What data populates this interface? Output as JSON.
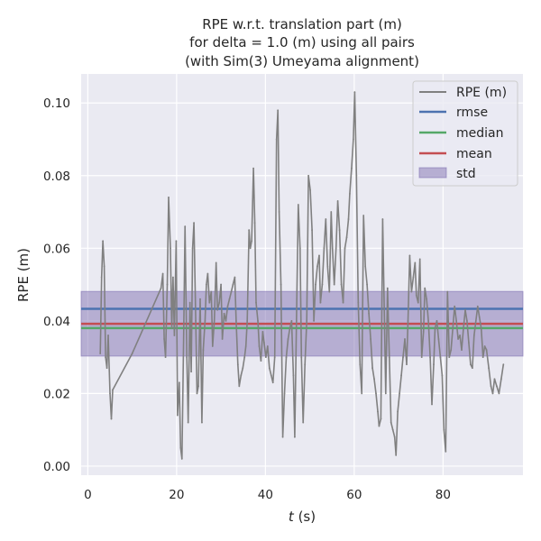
{
  "chart_data": {
    "type": "line",
    "title_lines": [
      "RPE w.r.t. translation part (m)",
      "for delta = 1.0 (m) using all pairs",
      "(with Sim(3) Umeyama alignment)"
    ],
    "xlabel_italic": "t",
    "xlabel_unit": " (s)",
    "ylabel": "RPE (m)",
    "xlim": [
      -1.5,
      98
    ],
    "ylim": [
      -0.0025,
      0.108
    ],
    "xticks": [
      0,
      20,
      40,
      60,
      80
    ],
    "yticks": [
      0.0,
      0.02,
      0.04,
      0.06,
      0.08,
      0.1
    ],
    "xtick_labels": [
      "0",
      "20",
      "40",
      "60",
      "80"
    ],
    "ytick_labels": [
      "0.00",
      "0.02",
      "0.04",
      "0.06",
      "0.08",
      "0.10"
    ],
    "grid": true,
    "legend_position": "top-right",
    "legend": [
      "RPE (m)",
      "rmse",
      "median",
      "mean",
      "std"
    ],
    "colors": {
      "background": "#EAEAF2",
      "grid": "#FFFFFF",
      "series": "#808080",
      "rmse": "#4C72B0",
      "median": "#55A868",
      "mean": "#C44E52",
      "std": "#8172B2"
    },
    "stats": {
      "rmse": 0.0433,
      "median": 0.038,
      "mean": 0.0392,
      "std": 0.0178
    },
    "series": [
      {
        "name": "RPE (m)",
        "points": [
          [
            2.8,
            0.031
          ],
          [
            3.1,
            0.052
          ],
          [
            3.4,
            0.062
          ],
          [
            3.7,
            0.055
          ],
          [
            4.0,
            0.03
          ],
          [
            4.3,
            0.027
          ],
          [
            4.6,
            0.036
          ],
          [
            5.0,
            0.02
          ],
          [
            5.3,
            0.013
          ],
          [
            5.6,
            0.021
          ],
          [
            10.0,
            0.031
          ],
          [
            16.5,
            0.049
          ],
          [
            16.9,
            0.053
          ],
          [
            17.2,
            0.035
          ],
          [
            17.5,
            0.03
          ],
          [
            17.9,
            0.05
          ],
          [
            18.2,
            0.074
          ],
          [
            18.6,
            0.06
          ],
          [
            18.9,
            0.038
          ],
          [
            19.2,
            0.052
          ],
          [
            19.5,
            0.036
          ],
          [
            19.9,
            0.062
          ],
          [
            20.2,
            0.014
          ],
          [
            20.6,
            0.023
          ],
          [
            20.9,
            0.005
          ],
          [
            21.2,
            0.002
          ],
          [
            21.6,
            0.038
          ],
          [
            21.9,
            0.066
          ],
          [
            22.3,
            0.03
          ],
          [
            22.6,
            0.012
          ],
          [
            23.0,
            0.045
          ],
          [
            23.3,
            0.026
          ],
          [
            23.6,
            0.06
          ],
          [
            23.9,
            0.067
          ],
          [
            24.3,
            0.04
          ],
          [
            24.6,
            0.02
          ],
          [
            24.9,
            0.022
          ],
          [
            25.3,
            0.046
          ],
          [
            25.7,
            0.012
          ],
          [
            26.0,
            0.032
          ],
          [
            26.4,
            0.04
          ],
          [
            26.7,
            0.05
          ],
          [
            27.0,
            0.053
          ],
          [
            27.4,
            0.045
          ],
          [
            27.8,
            0.048
          ],
          [
            28.1,
            0.033
          ],
          [
            28.5,
            0.04
          ],
          [
            28.9,
            0.056
          ],
          [
            29.2,
            0.043
          ],
          [
            29.6,
            0.045
          ],
          [
            30.0,
            0.05
          ],
          [
            30.3,
            0.035
          ],
          [
            30.7,
            0.042
          ],
          [
            31.1,
            0.04
          ],
          [
            31.5,
            0.044
          ],
          [
            31.9,
            0.046
          ],
          [
            32.3,
            0.048
          ],
          [
            32.7,
            0.05
          ],
          [
            33.1,
            0.052
          ],
          [
            33.4,
            0.04
          ],
          [
            33.8,
            0.028
          ],
          [
            34.1,
            0.022
          ],
          [
            34.5,
            0.025
          ],
          [
            34.9,
            0.027
          ],
          [
            35.3,
            0.03
          ],
          [
            35.6,
            0.033
          ],
          [
            35.9,
            0.04
          ],
          [
            36.3,
            0.065
          ],
          [
            36.6,
            0.06
          ],
          [
            36.9,
            0.062
          ],
          [
            37.3,
            0.082
          ],
          [
            37.6,
            0.067
          ],
          [
            37.9,
            0.045
          ],
          [
            38.3,
            0.04
          ],
          [
            38.6,
            0.033
          ],
          [
            39.0,
            0.029
          ],
          [
            39.4,
            0.037
          ],
          [
            39.7,
            0.034
          ],
          [
            40.1,
            0.03
          ],
          [
            40.5,
            0.033
          ],
          [
            40.9,
            0.027
          ],
          [
            41.3,
            0.025
          ],
          [
            41.7,
            0.023
          ],
          [
            42.1,
            0.03
          ],
          [
            42.5,
            0.09
          ],
          [
            42.8,
            0.098
          ],
          [
            43.1,
            0.07
          ],
          [
            43.5,
            0.05
          ],
          [
            43.9,
            0.008
          ],
          [
            44.3,
            0.02
          ],
          [
            44.7,
            0.03
          ],
          [
            45.1,
            0.035
          ],
          [
            45.5,
            0.038
          ],
          [
            45.9,
            0.04
          ],
          [
            46.3,
            0.025
          ],
          [
            46.6,
            0.008
          ],
          [
            47.0,
            0.04
          ],
          [
            47.4,
            0.072
          ],
          [
            47.8,
            0.06
          ],
          [
            48.1,
            0.03
          ],
          [
            48.5,
            0.012
          ],
          [
            48.9,
            0.028
          ],
          [
            49.3,
            0.04
          ],
          [
            49.7,
            0.08
          ],
          [
            50.1,
            0.076
          ],
          [
            50.5,
            0.065
          ],
          [
            50.9,
            0.04
          ],
          [
            51.3,
            0.05
          ],
          [
            51.7,
            0.055
          ],
          [
            52.1,
            0.058
          ],
          [
            52.4,
            0.045
          ],
          [
            52.8,
            0.05
          ],
          [
            53.2,
            0.06
          ],
          [
            53.6,
            0.068
          ],
          [
            54.0,
            0.055
          ],
          [
            54.4,
            0.048
          ],
          [
            54.8,
            0.07
          ],
          [
            55.1,
            0.06
          ],
          [
            55.5,
            0.05
          ],
          [
            55.9,
            0.06
          ],
          [
            56.3,
            0.073
          ],
          [
            56.7,
            0.065
          ],
          [
            57.1,
            0.05
          ],
          [
            57.5,
            0.045
          ],
          [
            57.9,
            0.06
          ],
          [
            58.3,
            0.063
          ],
          [
            58.7,
            0.068
          ],
          [
            59.0,
            0.075
          ],
          [
            59.4,
            0.082
          ],
          [
            59.8,
            0.09
          ],
          [
            60.1,
            0.103
          ],
          [
            60.5,
            0.08
          ],
          [
            60.9,
            0.045
          ],
          [
            61.3,
            0.028
          ],
          [
            61.7,
            0.02
          ],
          [
            62.1,
            0.069
          ],
          [
            62.5,
            0.055
          ],
          [
            62.9,
            0.05
          ],
          [
            63.3,
            0.042
          ],
          [
            63.7,
            0.035
          ],
          [
            64.1,
            0.027
          ],
          [
            64.5,
            0.024
          ],
          [
            64.9,
            0.02
          ],
          [
            65.3,
            0.015
          ],
          [
            65.6,
            0.011
          ],
          [
            66.0,
            0.013
          ],
          [
            66.4,
            0.068
          ],
          [
            66.8,
            0.04
          ],
          [
            67.1,
            0.02
          ],
          [
            67.5,
            0.049
          ],
          [
            67.9,
            0.03
          ],
          [
            68.3,
            0.012
          ],
          [
            68.7,
            0.01
          ],
          [
            69.1,
            0.008
          ],
          [
            69.4,
            0.003
          ],
          [
            69.8,
            0.015
          ],
          [
            70.2,
            0.02
          ],
          [
            70.6,
            0.025
          ],
          [
            71.0,
            0.03
          ],
          [
            71.4,
            0.035
          ],
          [
            71.8,
            0.028
          ],
          [
            72.1,
            0.04
          ],
          [
            72.5,
            0.058
          ],
          [
            72.9,
            0.048
          ],
          [
            73.3,
            0.052
          ],
          [
            73.7,
            0.056
          ],
          [
            74.0,
            0.047
          ],
          [
            74.4,
            0.045
          ],
          [
            74.8,
            0.057
          ],
          [
            75.2,
            0.03
          ],
          [
            75.6,
            0.037
          ],
          [
            75.9,
            0.049
          ],
          [
            76.3,
            0.046
          ],
          [
            76.7,
            0.04
          ],
          [
            77.1,
            0.03
          ],
          [
            77.5,
            0.017
          ],
          [
            77.9,
            0.028
          ],
          [
            78.2,
            0.038
          ],
          [
            78.6,
            0.04
          ],
          [
            79.0,
            0.035
          ],
          [
            79.4,
            0.03
          ],
          [
            79.8,
            0.025
          ],
          [
            80.2,
            0.01
          ],
          [
            80.6,
            0.004
          ],
          [
            81.0,
            0.048
          ],
          [
            81.4,
            0.03
          ],
          [
            81.8,
            0.032
          ],
          [
            82.2,
            0.038
          ],
          [
            82.6,
            0.044
          ],
          [
            83.0,
            0.04
          ],
          [
            83.4,
            0.035
          ],
          [
            83.8,
            0.036
          ],
          [
            84.2,
            0.032
          ],
          [
            84.6,
            0.038
          ],
          [
            85.0,
            0.043
          ],
          [
            85.4,
            0.04
          ],
          [
            85.8,
            0.034
          ],
          [
            86.2,
            0.028
          ],
          [
            86.6,
            0.027
          ],
          [
            87.0,
            0.036
          ],
          [
            87.4,
            0.04
          ],
          [
            87.8,
            0.044
          ],
          [
            88.2,
            0.041
          ],
          [
            88.6,
            0.038
          ],
          [
            89.0,
            0.03
          ],
          [
            89.4,
            0.033
          ],
          [
            89.8,
            0.032
          ],
          [
            90.3,
            0.027
          ],
          [
            90.8,
            0.022
          ],
          [
            91.2,
            0.02
          ],
          [
            91.6,
            0.024
          ],
          [
            92.1,
            0.022
          ],
          [
            92.6,
            0.02
          ],
          [
            93.1,
            0.024
          ],
          [
            93.6,
            0.028
          ]
        ]
      }
    ]
  }
}
